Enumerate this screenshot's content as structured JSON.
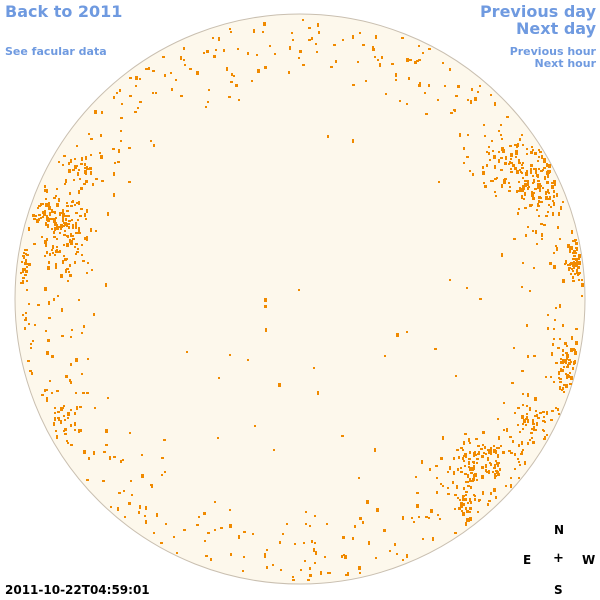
{
  "nav": {
    "back_label": "Back to 2011",
    "facular_label": "See facular data",
    "prev_day_label": "Previous day",
    "next_day_label": "Next day",
    "prev_hour_label": "Previous hour",
    "next_hour_label": "Next hour"
  },
  "compass": {
    "north": "N",
    "east": "E",
    "center": "+",
    "west": "W",
    "south": "S"
  },
  "timestamp": "2011-10-22T04:59:01",
  "colors": {
    "link": "#6f9ae0",
    "disk_fill": "#fdf8ec",
    "disk_border": "#c9bfb0",
    "faculae": "#f08a00"
  }
}
